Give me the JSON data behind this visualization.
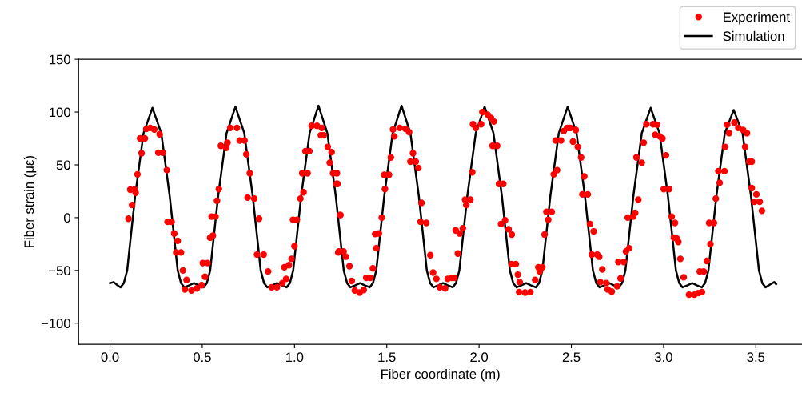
{
  "chart_data": {
    "type": "line",
    "xlabel": "Fiber coordinate (m)",
    "ylabel": "Fiber strain (με)",
    "xlim": [
      -0.17,
      3.75
    ],
    "xticks": [
      {
        "value": 0,
        "label": "0.0"
      },
      0.5,
      {
        "value": 1,
        "label": "1.0"
      },
      1.5,
      {
        "value": 2,
        "label": "2.0"
      },
      2.5,
      {
        "value": 3,
        "label": "3.0"
      },
      3.5
    ],
    "ylim": [
      -120,
      150
    ],
    "yticks": [
      {
        "value": -100,
        "label": "−100"
      },
      {
        "value": -50,
        "label": "−50"
      },
      0,
      50,
      100,
      150
    ],
    "grid": false,
    "legend": "top right",
    "series": [
      {
        "name": "Experiment",
        "type": "scatter",
        "marker": "circle",
        "color": "#ff0000",
        "x": [
          0.1,
          0.12,
          0.139,
          0.11,
          0.132,
          0.149,
          0.171,
          0.163,
          0.189,
          0.197,
          0.218,
          0.24,
          0.269,
          0.262,
          0.286,
          0.308,
          0.312,
          0.334,
          0.348,
          0.367,
          0.359,
          0.385,
          0.395,
          0.415,
          0.406,
          0.442,
          0.471,
          0.497,
          0.515,
          0.503,
          0.529,
          0.543,
          0.558,
          0.551,
          0.572,
          0.58,
          0.59,
          0.601,
          0.63,
          0.637,
          0.652,
          0.688,
          0.703,
          0.729,
          0.739,
          0.758,
          0.746,
          0.782,
          0.808,
          0.797,
          0.833,
          0.857,
          0.876,
          0.905,
          0.934,
          0.955,
          0.945,
          0.97,
          0.984,
          1.0,
          0.992,
          1.013,
          1.032,
          1.049,
          1.042,
          1.071,
          1.059,
          1.081,
          1.093,
          1.122,
          1.148,
          1.143,
          1.158,
          1.18,
          1.201,
          1.191,
          1.209,
          1.227,
          1.249,
          1.237,
          1.23,
          1.233,
          1.248,
          1.24,
          1.266,
          1.278,
          1.298,
          1.31,
          1.327,
          1.353,
          1.375,
          1.389,
          1.411,
          1.425,
          1.443,
          1.437,
          1.457,
          1.473,
          1.49,
          1.486,
          1.512,
          1.522,
          1.541,
          1.534,
          1.57,
          1.602,
          1.621,
          1.642,
          1.628,
          1.657,
          1.671,
          1.688,
          1.683,
          1.714,
          1.736,
          1.751,
          1.769,
          1.787,
          1.816,
          1.83,
          1.852,
          1.866,
          1.885,
          1.873,
          1.895,
          1.912,
          1.931,
          1.924,
          1.953,
          1.963,
          1.967,
          1.982,
          2.011,
          2.018,
          2.047,
          2.064,
          2.08,
          2.073,
          2.098,
          2.108,
          2.131,
          2.119,
          2.141,
          2.16,
          2.177,
          2.177,
          2.199,
          2.21,
          2.22,
          2.217,
          2.249,
          2.278,
          2.304,
          2.321,
          2.329,
          2.343,
          2.355,
          2.375,
          2.365,
          2.394,
          2.405,
          2.423,
          2.415,
          2.444,
          2.459,
          2.477,
          2.495,
          2.509,
          2.488,
          2.524,
          2.535,
          2.553,
          2.57,
          2.56,
          2.589,
          2.601,
          2.621,
          2.611,
          2.64,
          2.651,
          2.668,
          2.657,
          2.69,
          2.697,
          2.719,
          2.748,
          2.767,
          2.755,
          2.784,
          2.796,
          2.813,
          2.806,
          2.835,
          2.846,
          2.863,
          2.853,
          2.882,
          2.892,
          2.907,
          2.943,
          2.965,
          2.955,
          2.979,
          2.994,
          3.013,
          3.001,
          3.03,
          3.044,
          3.062,
          3.056,
          3.073,
          3.08,
          3.091,
          3.109,
          3.138,
          3.167,
          3.189,
          3.208,
          3.196,
          3.218,
          3.235,
          3.254,
          3.247,
          3.273,
          3.283,
          3.304,
          3.297,
          3.33,
          3.333,
          3.355,
          3.345,
          3.384,
          3.405,
          3.431,
          3.452,
          3.442,
          3.464,
          3.478,
          3.478,
          3.503,
          3.492,
          3.521,
          3.533
        ],
        "values": [
          -1,
          12,
          23.5,
          26.5,
          26.5,
          41,
          61,
          75,
          75,
          84,
          85,
          83.5,
          79,
          61.5,
          61.5,
          45,
          -4,
          -4,
          -15,
          -22,
          -33,
          -33,
          -50,
          -59,
          -68,
          -69,
          -67,
          -64,
          -56,
          -43,
          -43,
          -19,
          -17,
          1,
          1,
          16,
          27,
          68,
          66,
          71,
          85,
          85,
          73,
          73,
          60,
          42,
          19,
          18,
          -1,
          -35,
          -35,
          -51,
          -66,
          -66,
          -62,
          -58,
          -47,
          -45,
          -39,
          -27,
          -2,
          -2,
          18,
          24,
          42,
          42,
          63,
          63,
          87,
          87,
          85,
          78,
          78,
          67,
          62,
          52,
          42,
          32,
          2.5,
          -33,
          42,
          32,
          2.5,
          -32,
          -32,
          -37,
          -46,
          -60,
          -69,
          -71,
          -68.5,
          -57,
          -57,
          -48,
          -29,
          -15.5,
          -15,
          0,
          27,
          40.5,
          40.5,
          57,
          77,
          83.5,
          85,
          84,
          81,
          61,
          53,
          53,
          47,
          14,
          -4,
          -5,
          -35.5,
          -52,
          -58,
          -66,
          -67,
          -58,
          -57,
          -57,
          -34,
          -12,
          -15,
          -10,
          12,
          17,
          17,
          43,
          88.5,
          85,
          88.5,
          100,
          97.5,
          94.5,
          91,
          68,
          68,
          32,
          32,
          -6,
          -2.5,
          -11,
          -16,
          -44,
          -44,
          -54,
          -61,
          -70.5,
          -71,
          -70.5,
          -59,
          -47,
          -51,
          -47,
          -16,
          -2,
          5.5,
          5.5,
          41,
          45,
          73,
          73,
          82,
          85,
          85,
          72,
          85,
          83,
          67,
          57,
          39,
          22,
          22,
          -6,
          -13,
          -35,
          -35,
          -37,
          -49,
          -61,
          -62,
          -68,
          -70,
          -65,
          -57.5,
          -42,
          -42,
          -32,
          -29,
          0,
          1,
          4.5,
          17,
          57,
          52,
          71,
          88.5,
          88.5,
          88,
          78.5,
          77,
          75,
          59,
          27,
          27,
          1,
          -5,
          -19,
          -20,
          -23,
          -39,
          -56.5,
          -73,
          -73,
          -71.5,
          -70.5,
          -51,
          -51,
          -41,
          -25,
          -5,
          -5,
          18,
          33,
          44,
          44,
          67,
          80,
          88,
          90,
          85,
          83,
          80,
          67,
          53,
          53,
          28,
          22,
          15,
          15,
          6.5
        ]
      },
      {
        "name": "Simulation",
        "marker": "none",
        "line_style": "solid",
        "color": "#000000",
        "x": [
          0.0,
          0.02,
          0.04,
          0.057,
          0.075,
          0.093,
          0.136,
          0.182,
          0.23,
          0.278,
          0.324,
          0.367,
          0.385,
          0.403,
          0.43,
          0.455,
          0.48,
          0.507,
          0.525,
          0.543,
          0.586,
          0.632,
          0.68,
          0.728,
          0.774,
          0.817,
          0.835,
          0.853,
          0.88,
          0.905,
          0.93,
          0.957,
          0.975,
          0.993,
          1.036,
          1.082,
          1.13,
          1.178,
          1.224,
          1.267,
          1.285,
          1.303,
          1.33,
          1.355,
          1.38,
          1.407,
          1.425,
          1.443,
          1.486,
          1.532,
          1.58,
          1.628,
          1.674,
          1.717,
          1.735,
          1.753,
          1.78,
          1.805,
          1.83,
          1.857,
          1.875,
          1.893,
          1.936,
          1.982,
          2.03,
          2.078,
          2.124,
          2.167,
          2.185,
          2.203,
          2.23,
          2.255,
          2.28,
          2.307,
          2.325,
          2.343,
          2.386,
          2.432,
          2.48,
          2.528,
          2.574,
          2.617,
          2.635,
          2.653,
          2.68,
          2.705,
          2.73,
          2.757,
          2.775,
          2.793,
          2.836,
          2.882,
          2.93,
          2.978,
          3.024,
          3.067,
          3.085,
          3.103,
          3.13,
          3.155,
          3.18,
          3.207,
          3.225,
          3.243,
          3.286,
          3.332,
          3.38,
          3.428,
          3.474,
          3.517,
          3.535,
          3.553,
          3.58,
          3.6,
          3.61
        ],
        "values": [
          -62,
          -61,
          -64,
          -66,
          -62,
          -50,
          20,
          80,
          104,
          80,
          20,
          -50,
          -62,
          -66,
          -64,
          -62,
          -64,
          -66,
          -62,
          -50,
          20,
          80,
          105,
          80,
          20,
          -50,
          -62,
          -66,
          -64,
          -62,
          -64,
          -66,
          -62,
          -50,
          20,
          80,
          106,
          80,
          20,
          -50,
          -62,
          -66,
          -64,
          -62,
          -64,
          -66,
          -62,
          -50,
          20,
          80,
          106,
          80,
          20,
          -50,
          -62,
          -66,
          -64,
          -62,
          -64,
          -66,
          -62,
          -50,
          20,
          80,
          105,
          80,
          20,
          -50,
          -62,
          -66,
          -64,
          -62,
          -64,
          -66,
          -62,
          -50,
          20,
          80,
          105,
          80,
          20,
          -50,
          -62,
          -66,
          -64,
          -62,
          -64,
          -66,
          -62,
          -50,
          20,
          80,
          104,
          80,
          20,
          -50,
          -62,
          -66,
          -64,
          -62,
          -64,
          -66,
          -62,
          -50,
          20,
          80,
          102,
          80,
          20,
          -50,
          -62,
          -66,
          -63,
          -61,
          -63
        ]
      }
    ]
  }
}
